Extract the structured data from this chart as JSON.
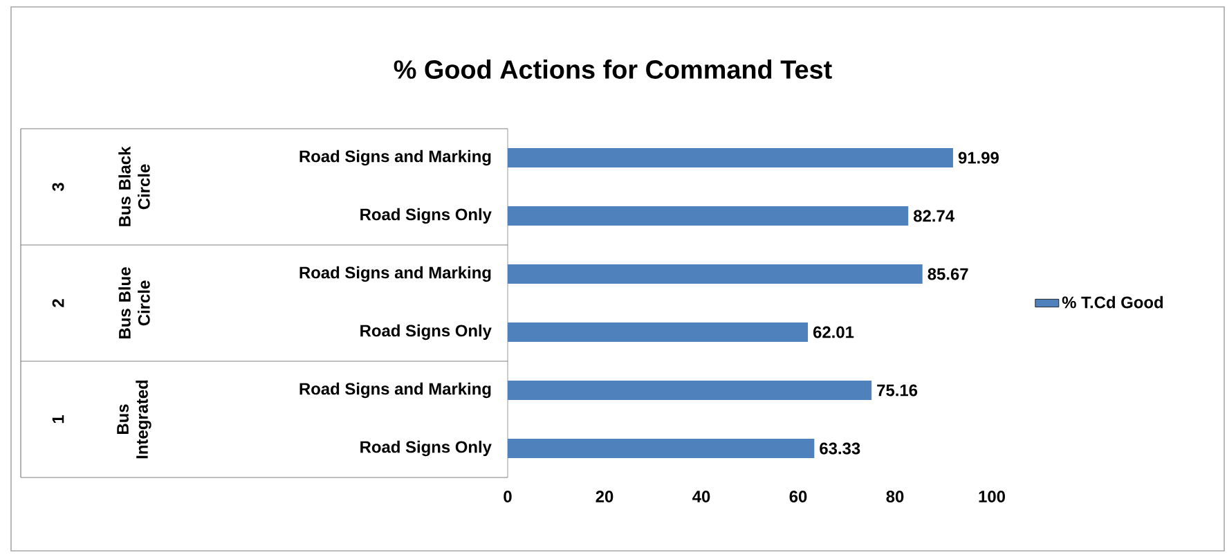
{
  "chart_data": {
    "type": "bar",
    "orientation": "horizontal",
    "title": "% Good Actions for Command Test",
    "categories": [
      "Road Signs and Marking",
      "Road Signs Only",
      "Road Signs and Marking",
      "Road Signs Only",
      "Road Signs and Marking",
      "Road Signs Only"
    ],
    "series": [
      {
        "name": "% T.Cd Good",
        "color": "#4f81bd",
        "values": [
          91.99,
          82.74,
          85.67,
          62.01,
          75.16,
          63.33
        ]
      }
    ],
    "annotations": [
      "3",
      "Bus Black Circle",
      "2",
      "Bus Blue Circle",
      "1",
      "Bus Integrated"
    ],
    "xlim": [
      0,
      100
    ],
    "xticks": [
      0,
      20,
      40,
      60,
      80,
      100
    ],
    "data_labels": true,
    "legend": "right",
    "grid": false
  }
}
